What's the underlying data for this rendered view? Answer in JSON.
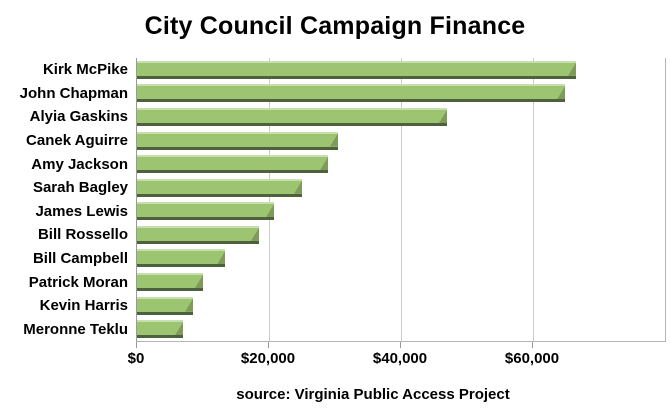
{
  "title": "City Council Campaign Finance",
  "source_caption": "source: Virginia Public Access Project",
  "chart_data": {
    "type": "bar",
    "orientation": "horizontal",
    "title": "City Council Campaign Finance",
    "categories": [
      "Kirk McPike",
      "John Chapman",
      "Alyia Gaskins",
      "Canek Aguirre",
      "Amy Jackson",
      "Sarah Bagley",
      "James Lewis",
      "Bill Rossello",
      "Bill Campbell",
      "Patrick Moran",
      "Kevin Harris",
      "Meronne Teklu"
    ],
    "values": [
      66500,
      64800,
      47000,
      30500,
      29000,
      25000,
      20800,
      18500,
      13400,
      10000,
      8500,
      7000
    ],
    "xlabel": "",
    "ylabel": "",
    "xlim": [
      0,
      80000
    ],
    "x_ticks": [
      {
        "value": 0,
        "label": "$0"
      },
      {
        "value": 20000,
        "label": "$20,000"
      },
      {
        "value": 40000,
        "label": "$40,000"
      },
      {
        "value": 60000,
        "label": "$60,000"
      }
    ],
    "grid": "vertical-gridlines-on",
    "legend": "none",
    "annotation": "source: Virginia Public Access Project",
    "colors": {
      "bar_fill": "#9dc470",
      "bar_highlight": "#c6dfae",
      "bar_shadow": "#4f603c",
      "bar_bevel": "#7e9b57",
      "gridline": "#cccccc",
      "axis_line": "#9a9a9a",
      "frame_line": "#b5b5b5",
      "text": "#000000",
      "background": "#ffffff"
    }
  }
}
